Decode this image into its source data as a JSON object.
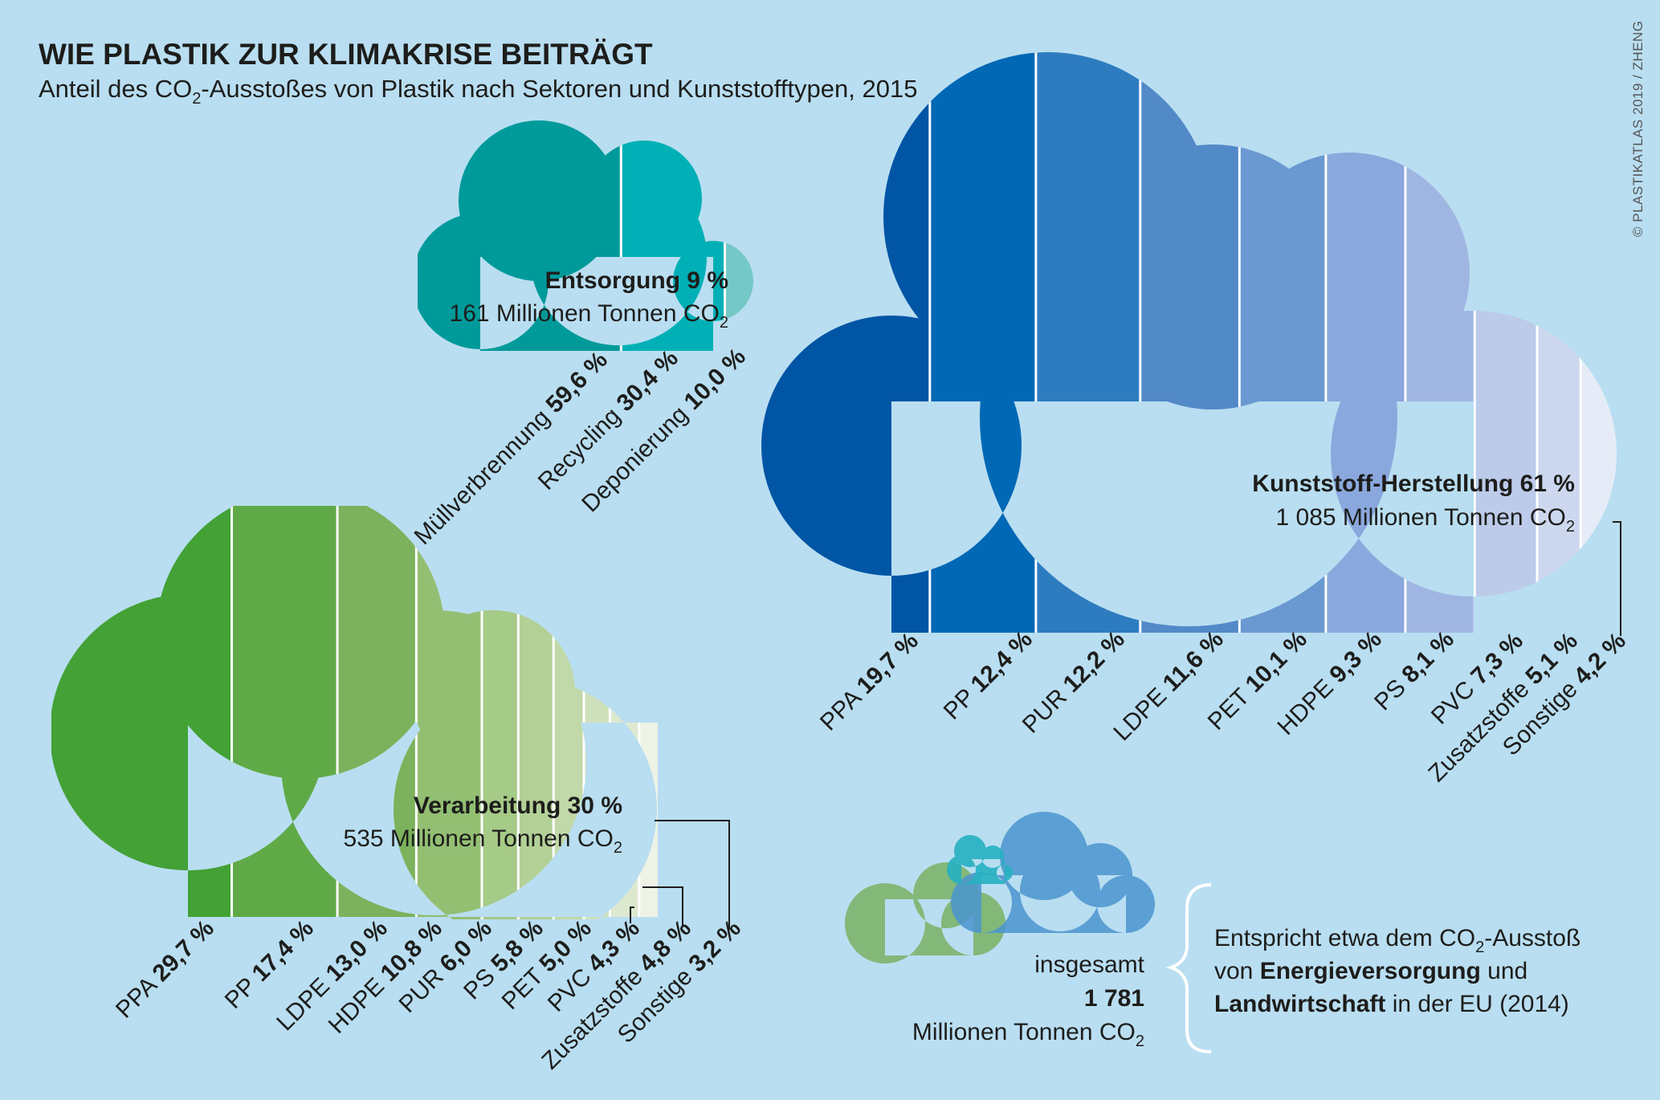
{
  "header": {
    "title": "WIE PLASTIK ZUR KLIMAKRISE BEITRÄGT",
    "subtitle_pre": "Anteil des CO",
    "subtitle_sub": "2",
    "subtitle_post": "-Ausstoßes von Plastik nach Sektoren und Kunststofftypen, 2015"
  },
  "credit": "© PLASTIKATLAS 2019 / ZHENG",
  "unit_line": "Millionen Tonnen CO",
  "unit_sub": "2",
  "chart_data": [
    {
      "type": "bar",
      "name": "Entsorgung",
      "share_label": "Entsorgung 9 %",
      "share_percent": 9,
      "total": 161,
      "total_label": "161",
      "categories": [
        "Müllverbrennung",
        "Recycling",
        "Deponierung"
      ],
      "values": [
        59.6,
        30.4,
        10.0
      ],
      "value_labels": [
        "59,6 %",
        "30,4 %",
        "10,0 %"
      ],
      "colors": [
        "#009a9a",
        "#00b0b6",
        "#74c9c7"
      ]
    },
    {
      "type": "bar",
      "name": "Kunststoff-Herstellung",
      "share_label": "Kunststoff-Herstellung 61 %",
      "share_percent": 61,
      "total": 1085,
      "total_label": "1 085",
      "categories": [
        "PPA",
        "PP",
        "PUR",
        "LDPE",
        "PET",
        "HDPE",
        "PS",
        "PVC",
        "Zusatzstoffe",
        "Sonstige"
      ],
      "values": [
        19.7,
        12.4,
        12.2,
        11.6,
        10.1,
        9.3,
        8.1,
        7.3,
        5.1,
        4.2
      ],
      "value_labels": [
        "19,7 %",
        "12,4 %",
        "12,2 %",
        "11,6 %",
        "10,1 %",
        "9,3 %",
        "8,1 %",
        "7,3 %",
        "5,1 %",
        "4,2 %"
      ],
      "colors": [
        "#0055a5",
        "#0068b5",
        "#2e7cc0",
        "#5289c7",
        "#6a99d1",
        "#8aa8dd",
        "#a0b6e2",
        "#bccbe9",
        "#cdd8ef",
        "#e6ecf7"
      ]
    },
    {
      "type": "bar",
      "name": "Verarbeitung",
      "share_label": "Verarbeitung 30 %",
      "share_percent": 30,
      "total": 535,
      "total_label": "535",
      "categories": [
        "PPA",
        "PP",
        "LDPE",
        "HDPE",
        "PUR",
        "PS",
        "PET",
        "PVC",
        "Zusatzstoffe",
        "Sonstige"
      ],
      "values": [
        29.7,
        17.4,
        13.0,
        10.8,
        6.0,
        5.8,
        5.0,
        4.3,
        4.8,
        3.2
      ],
      "value_labels": [
        "29,7 %",
        "17,4 %",
        "13,0 %",
        "10,8 %",
        "6,0 %",
        "5,8 %",
        "5,0 %",
        "4,3 %",
        "4,8 %",
        "3,2 %"
      ],
      "colors": [
        "#43a136",
        "#5faa47",
        "#7cb25c",
        "#93bf73",
        "#a6ca87",
        "#b3d097",
        "#c1d9a8",
        "#cfe1bb",
        "#dde9cf",
        "#eef3e6"
      ]
    }
  ],
  "summary": {
    "label": "insgesamt",
    "total": "1 781",
    "unit": "Millionen Tonnen CO",
    "unit_sub": "2",
    "icon_colors": [
      "#7db46c",
      "#4a94cf",
      "#26b0c0"
    ]
  },
  "note": {
    "l1_pre": "Entspricht etwa dem CO",
    "l1_sub": "2",
    "l1_post": "-Ausstoß",
    "l2_pre": "von ",
    "l2_bold": "Energieversorgung",
    "l2_post": " und",
    "l3_bold": "Landwirtschaft",
    "l3_post": " in der EU (2014)"
  }
}
